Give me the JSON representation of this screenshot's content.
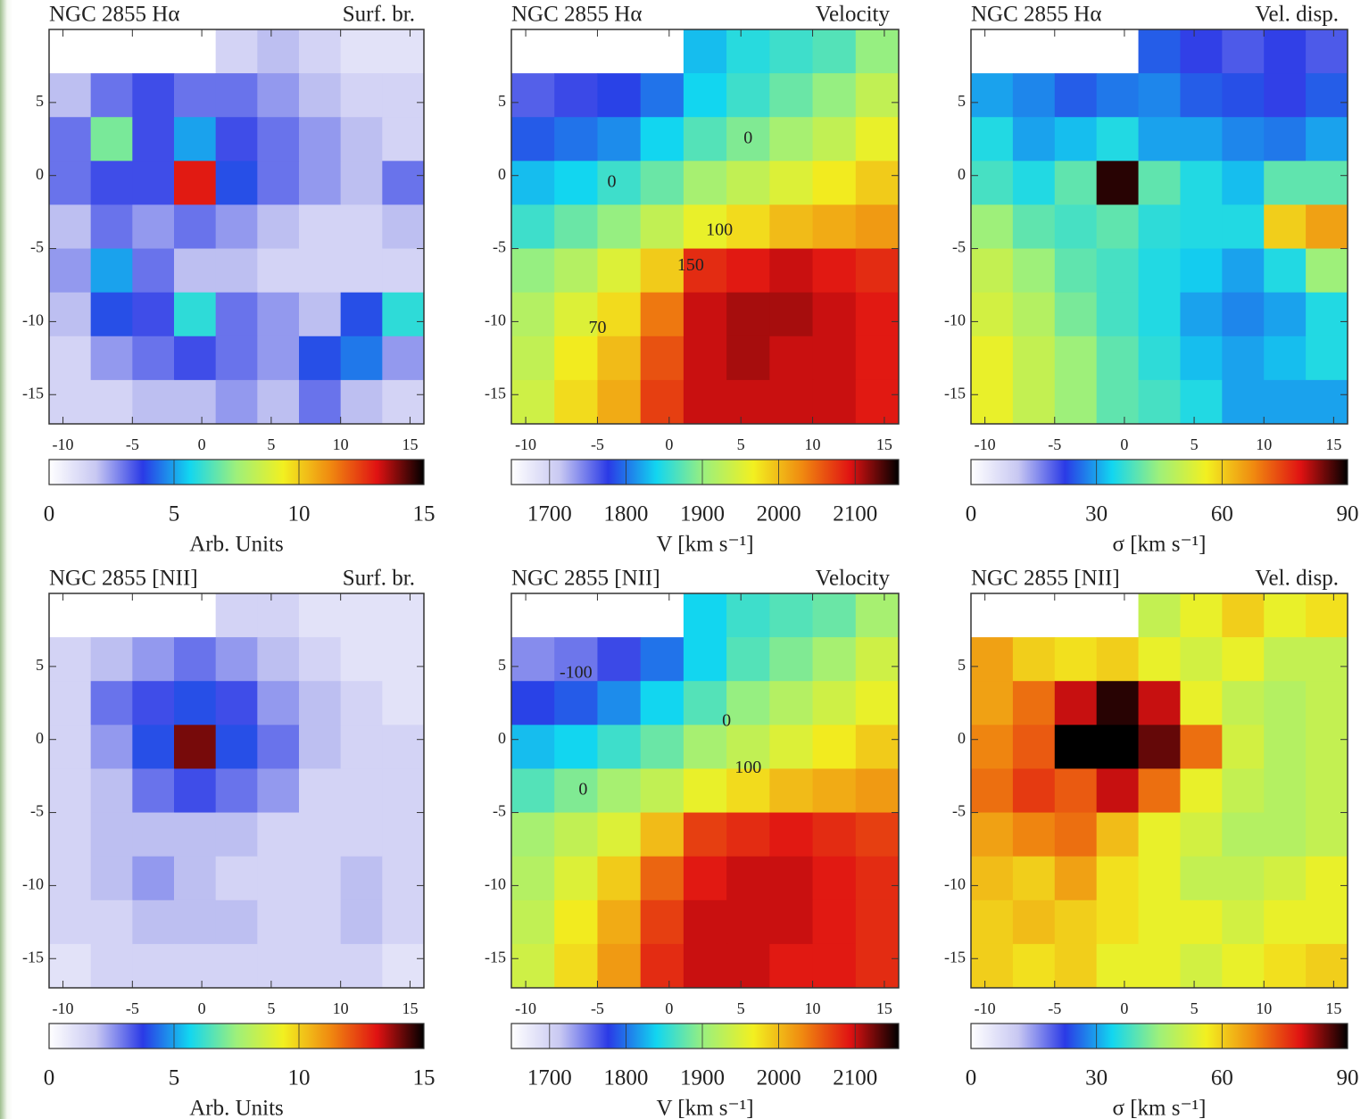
{
  "colormap": [
    "#ffffff",
    "#c8c8f2",
    "#2a3ae6",
    "#12d6f0",
    "#9ef07a",
    "#f2f020",
    "#f08a10",
    "#e01212",
    "#000000"
  ],
  "chart_data": [
    {
      "type": "heatmap",
      "title": "NGC 2855 Hα",
      "subtitle": "Surf. br.",
      "colorbar_label": "Arb. Units",
      "xlim": [
        -11,
        16
      ],
      "ylim": [
        -17,
        10
      ],
      "xticks": [
        -10,
        -5,
        0,
        5,
        10,
        15
      ],
      "yticks": [
        5,
        0,
        -5,
        -10,
        -15
      ],
      "clim": [
        0,
        15
      ],
      "cticks": [
        0,
        5,
        10,
        15
      ],
      "x": [
        -9.5,
        -6.5,
        -3.5,
        -0.5,
        2.5,
        5.5,
        8.5,
        11.5,
        14.5
      ],
      "y": [
        8.5,
        5.5,
        2.5,
        -0.5,
        -3.5,
        -6.5,
        -9.5,
        -12.5,
        -15.5
      ],
      "z": [
        [
          null,
          null,
          null,
          null,
          1.5,
          2,
          1.5,
          1,
          1
        ],
        [
          2,
          3,
          3.5,
          3,
          3,
          2.5,
          2,
          1.5,
          1.5
        ],
        [
          3,
          7,
          3.5,
          5,
          3.5,
          3,
          2.5,
          2,
          1.5
        ],
        [
          3,
          3.5,
          3.5,
          13,
          4,
          3,
          2.5,
          2,
          3
        ],
        [
          2,
          3,
          2.5,
          3,
          2.5,
          2,
          1.5,
          1.5,
          2
        ],
        [
          2.5,
          5,
          3,
          2,
          2,
          1.5,
          1.5,
          1.5,
          1.5
        ],
        [
          2,
          4,
          3.5,
          6,
          3,
          2.5,
          2,
          4,
          6
        ],
        [
          1.5,
          2.5,
          3,
          3.5,
          3,
          2.5,
          4,
          4.5,
          2.5
        ],
        [
          1.5,
          1.5,
          2,
          2,
          2.5,
          2,
          3,
          2,
          1.5
        ]
      ]
    },
    {
      "type": "heatmap",
      "title": "NGC 2855 Hα",
      "subtitle": "Velocity",
      "colorbar_label": "V [km s⁻¹]",
      "xlim": [
        -11,
        16
      ],
      "ylim": [
        -17,
        10
      ],
      "xticks": [
        -10,
        -5,
        0,
        5,
        10,
        15
      ],
      "yticks": [
        5,
        0,
        -5,
        -10,
        -15
      ],
      "clim": [
        1650,
        2157
      ],
      "cticks": [
        1700,
        1800,
        1900,
        2000,
        2100
      ],
      "x": [
        -9.5,
        -6.5,
        -3.5,
        -0.5,
        2.5,
        5.5,
        8.5,
        11.5,
        14.5
      ],
      "y": [
        8.5,
        5.5,
        2.5,
        -0.5,
        -3.5,
        -6.5,
        -9.5,
        -12.5,
        -15.5
      ],
      "z": [
        [
          null,
          null,
          null,
          null,
          1830,
          1850,
          1860,
          1870,
          1900
        ],
        [
          1760,
          1770,
          1780,
          1800,
          1840,
          1860,
          1880,
          1900,
          1930
        ],
        [
          1790,
          1800,
          1810,
          1840,
          1870,
          1890,
          1910,
          1930,
          1960
        ],
        [
          1830,
          1840,
          1860,
          1880,
          1910,
          1930,
          1950,
          1970,
          1990
        ],
        [
          1860,
          1880,
          1900,
          1930,
          1960,
          1980,
          2000,
          2010,
          2020
        ],
        [
          1900,
          1920,
          1950,
          1990,
          2080,
          2090,
          2100,
          2090,
          2080
        ],
        [
          1920,
          1950,
          1980,
          2040,
          2100,
          2110,
          2110,
          2100,
          2090
        ],
        [
          1930,
          1970,
          2000,
          2060,
          2100,
          2110,
          2100,
          2100,
          2090
        ],
        [
          1940,
          1980,
          2010,
          2070,
          2100,
          2100,
          2100,
          2100,
          2090
        ]
      ],
      "annotations": [
        {
          "text": "0",
          "x": -4,
          "y": -0.5
        },
        {
          "text": "0",
          "x": 5.5,
          "y": 2.5
        },
        {
          "text": "100",
          "x": 3.5,
          "y": -3.8
        },
        {
          "text": "150",
          "x": 1.5,
          "y": -6.2
        },
        {
          "text": "70",
          "x": -5,
          "y": -10.5
        }
      ]
    },
    {
      "type": "heatmap",
      "title": "NGC 2855 Hα",
      "subtitle": "Vel. disp.",
      "colorbar_label": "σ [km s⁻¹]",
      "xlim": [
        -11,
        16
      ],
      "ylim": [
        -17,
        10
      ],
      "xticks": [
        -10,
        -5,
        0,
        5,
        10,
        15
      ],
      "yticks": [
        5,
        0,
        -5,
        -10,
        -15
      ],
      "clim": [
        0,
        90
      ],
      "cticks": [
        0,
        30,
        60,
        90
      ],
      "x": [
        -9.5,
        -6.5,
        -3.5,
        -0.5,
        2.5,
        5.5,
        8.5,
        11.5,
        14.5
      ],
      "y": [
        8.5,
        5.5,
        2.5,
        -0.5,
        -3.5,
        -6.5,
        -9.5,
        -12.5,
        -15.5
      ],
      "z": [
        [
          null,
          null,
          null,
          null,
          25,
          22,
          20,
          22,
          20
        ],
        [
          30,
          28,
          25,
          27,
          28,
          25,
          24,
          22,
          25
        ],
        [
          35,
          30,
          32,
          35,
          30,
          30,
          28,
          27,
          30
        ],
        [
          38,
          35,
          40,
          88,
          40,
          35,
          32,
          40,
          40
        ],
        [
          45,
          40,
          38,
          40,
          36,
          35,
          35,
          60,
          65
        ],
        [
          50,
          45,
          40,
          38,
          35,
          33,
          30,
          35,
          45
        ],
        [
          52,
          48,
          42,
          38,
          35,
          30,
          28,
          30,
          35
        ],
        [
          55,
          50,
          45,
          40,
          36,
          32,
          30,
          32,
          35
        ],
        [
          55,
          50,
          45,
          40,
          38,
          35,
          30,
          30,
          30
        ]
      ]
    },
    {
      "type": "heatmap",
      "title": "NGC 2855 [NII]",
      "subtitle": "Surf. br.",
      "colorbar_label": "Arb. Units",
      "xlim": [
        -11,
        16
      ],
      "ylim": [
        -17,
        10
      ],
      "xticks": [
        -10,
        -5,
        0,
        5,
        10,
        15
      ],
      "yticks": [
        5,
        0,
        -5,
        -10,
        -15
      ],
      "clim": [
        0,
        15
      ],
      "cticks": [
        0,
        5,
        10,
        15
      ],
      "x": [
        -9.5,
        -6.5,
        -3.5,
        -0.5,
        2.5,
        5.5,
        8.5,
        11.5,
        14.5
      ],
      "y": [
        8.5,
        5.5,
        2.5,
        -0.5,
        -3.5,
        -6.5,
        -9.5,
        -12.5,
        -15.5
      ],
      "z": [
        [
          null,
          null,
          null,
          null,
          1.5,
          1.5,
          1,
          1,
          1
        ],
        [
          1.5,
          2,
          2.5,
          3,
          2.5,
          2,
          1.5,
          1,
          1
        ],
        [
          1.5,
          3,
          3.5,
          4,
          3.5,
          2.5,
          2,
          1.5,
          1
        ],
        [
          1.5,
          2.5,
          4,
          14,
          4,
          3,
          2,
          1.5,
          1.5
        ],
        [
          1.5,
          2,
          3,
          3.5,
          3,
          2.5,
          1.5,
          1.5,
          1.5
        ],
        [
          1.5,
          2,
          2,
          2,
          2,
          1.5,
          1.5,
          1.5,
          1.5
        ],
        [
          1.5,
          2,
          2.5,
          2,
          1.5,
          1.5,
          1.5,
          2,
          1.5
        ],
        [
          1.5,
          1.5,
          2,
          2,
          2,
          1.5,
          1.5,
          2,
          1.5
        ],
        [
          1,
          1.5,
          1.5,
          1.5,
          1.5,
          1.5,
          1.5,
          1.5,
          1
        ]
      ]
    },
    {
      "type": "heatmap",
      "title": "NGC 2855 [NII]",
      "subtitle": "Velocity",
      "colorbar_label": "V [km s⁻¹]",
      "xlim": [
        -11,
        16
      ],
      "ylim": [
        -17,
        10
      ],
      "xticks": [
        -10,
        -5,
        0,
        5,
        10,
        15
      ],
      "yticks": [
        5,
        0,
        -5,
        -10,
        -15
      ],
      "clim": [
        1650,
        2157
      ],
      "cticks": [
        1700,
        1800,
        1900,
        2000,
        2100
      ],
      "x": [
        -9.5,
        -6.5,
        -3.5,
        -0.5,
        2.5,
        5.5,
        8.5,
        11.5,
        14.5
      ],
      "y": [
        8.5,
        5.5,
        2.5,
        -0.5,
        -3.5,
        -6.5,
        -9.5,
        -12.5,
        -15.5
      ],
      "z": [
        [
          null,
          null,
          null,
          null,
          1840,
          1860,
          1870,
          1880,
          1910
        ],
        [
          1740,
          1750,
          1770,
          1800,
          1840,
          1870,
          1890,
          1910,
          1940
        ],
        [
          1780,
          1790,
          1810,
          1840,
          1870,
          1900,
          1920,
          1940,
          1960
        ],
        [
          1830,
          1840,
          1860,
          1880,
          1910,
          1930,
          1950,
          1970,
          1990
        ],
        [
          1870,
          1890,
          1910,
          1930,
          1960,
          1980,
          2000,
          2010,
          2020
        ],
        [
          1910,
          1930,
          1950,
          2000,
          2070,
          2080,
          2090,
          2080,
          2070
        ],
        [
          1920,
          1950,
          1990,
          2050,
          2090,
          2100,
          2100,
          2090,
          2080
        ],
        [
          1930,
          1970,
          2010,
          2070,
          2100,
          2100,
          2100,
          2090,
          2080
        ],
        [
          1940,
          1980,
          2020,
          2080,
          2100,
          2100,
          2090,
          2090,
          2080
        ]
      ],
      "annotations": [
        {
          "text": "-100",
          "x": -6.5,
          "y": 4.5
        },
        {
          "text": "0",
          "x": -6,
          "y": -3.5
        },
        {
          "text": "0",
          "x": 4,
          "y": 1.2
        },
        {
          "text": "100",
          "x": 5.5,
          "y": -2
        }
      ]
    },
    {
      "type": "heatmap",
      "title": "NGC 2855 [NII]",
      "subtitle": "Vel. disp.",
      "colorbar_label": "σ [km s⁻¹]",
      "xlim": [
        -11,
        16
      ],
      "ylim": [
        -17,
        10
      ],
      "xticks": [
        -10,
        -5,
        0,
        5,
        10,
        15
      ],
      "yticks": [
        5,
        0,
        -5,
        -10,
        -15
      ],
      "clim": [
        0,
        90
      ],
      "cticks": [
        0,
        30,
        60,
        90
      ],
      "x": [
        -9.5,
        -6.5,
        -3.5,
        -0.5,
        2.5,
        5.5,
        8.5,
        11.5,
        14.5
      ],
      "y": [
        8.5,
        5.5,
        2.5,
        -0.5,
        -3.5,
        -6.5,
        -9.5,
        -12.5,
        -15.5
      ],
      "z": [
        [
          null,
          null,
          null,
          null,
          50,
          55,
          60,
          55,
          58
        ],
        [
          65,
          60,
          58,
          60,
          55,
          52,
          55,
          50,
          50
        ],
        [
          65,
          70,
          80,
          88,
          80,
          55,
          50,
          48,
          50
        ],
        [
          68,
          72,
          90,
          90,
          85,
          70,
          52,
          48,
          50
        ],
        [
          70,
          75,
          72,
          80,
          70,
          55,
          50,
          48,
          50
        ],
        [
          65,
          68,
          70,
          62,
          55,
          52,
          48,
          48,
          50
        ],
        [
          62,
          60,
          65,
          58,
          55,
          50,
          50,
          52,
          55
        ],
        [
          60,
          62,
          60,
          58,
          55,
          55,
          52,
          55,
          55
        ],
        [
          60,
          58,
          60,
          55,
          55,
          52,
          55,
          58,
          60
        ]
      ]
    }
  ]
}
